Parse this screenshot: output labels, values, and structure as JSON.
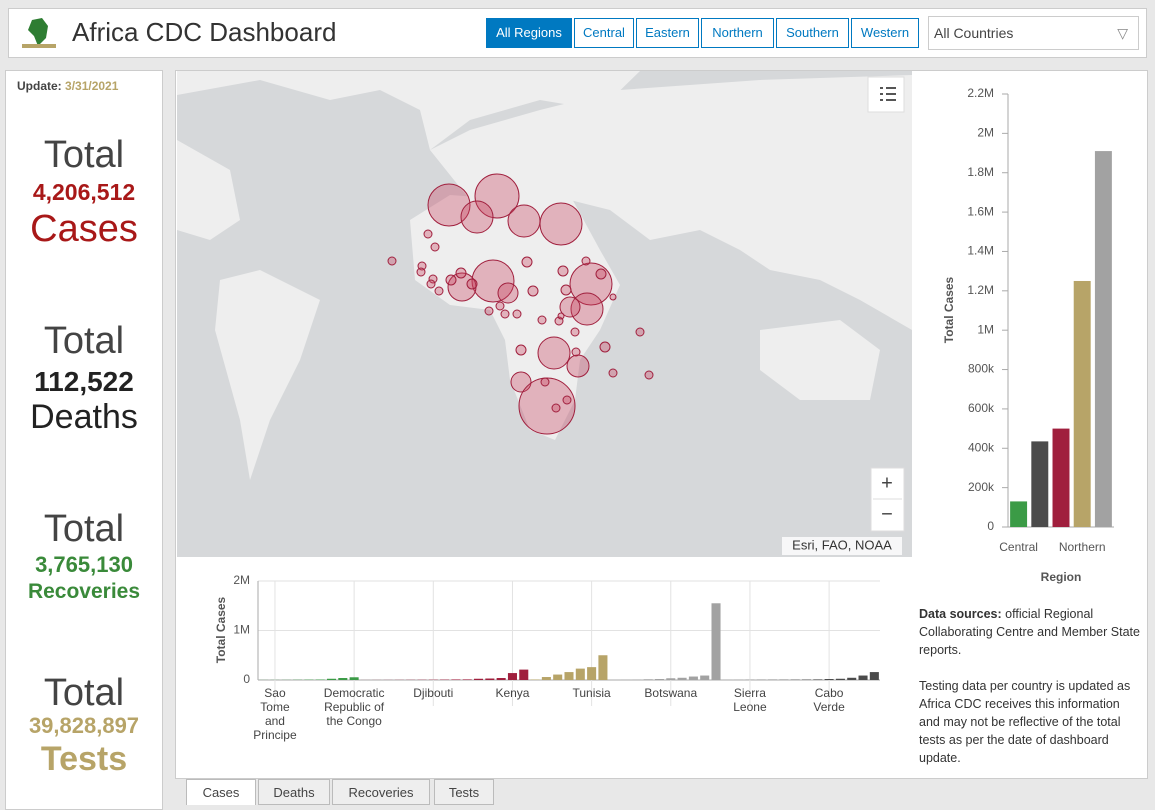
{
  "header": {
    "title": "Africa CDC Dashboard",
    "region_buttons": [
      "All Regions",
      "Central",
      "Eastern",
      "Northern",
      "Southern",
      "Western"
    ],
    "country_select": "All Countries"
  },
  "summary": {
    "update_label": "Update:",
    "update_date": "3/31/2021",
    "items": [
      {
        "total": "Total",
        "number": "4,206,512",
        "label": "Cases"
      },
      {
        "total": "Total",
        "number": "112,522",
        "label": "Deaths"
      },
      {
        "total": "Total",
        "number": "3,765,130",
        "label": "Recoveries"
      },
      {
        "total": "Total",
        "number": "39,828,897",
        "label": "Tests"
      }
    ]
  },
  "map": {
    "attribution": "Esri, FAO, NOAA",
    "zoom_in": "+",
    "zoom_out": "−"
  },
  "chart_data": [
    {
      "type": "bar",
      "y_label": "Total Cases",
      "x_label": "Region",
      "categories": [
        "Central",
        null,
        null,
        "Northern",
        null
      ],
      "values": [
        130000,
        435000,
        500000,
        1250000,
        1910000
      ],
      "colors": [
        "#3b9b46",
        "#4b4b4b",
        "#a01f3d",
        "#b7a468",
        "#a2a2a2"
      ],
      "ylim": [
        0,
        2200000
      ],
      "yticks": [
        0,
        {
          "value": 200000,
          "label": "200k"
        },
        {
          "value": 400000,
          "label": "400k"
        },
        {
          "value": 600000,
          "label": "600k"
        },
        {
          "value": 800000,
          "label": "800k"
        },
        {
          "value": 1000000,
          "label": "1M"
        },
        {
          "value": 1200000,
          "label": "1.2M"
        },
        {
          "value": 1400000,
          "label": "1.4M"
        },
        {
          "value": 1600000,
          "label": "1.6M"
        },
        {
          "value": 1800000,
          "label": "1.8M"
        },
        {
          "value": 2000000,
          "label": "2M"
        },
        {
          "value": 2200000,
          "label": "2.2M"
        }
      ]
    },
    {
      "type": "bar",
      "y_label": "Total Cases",
      "categories": [
        null,
        "Sao Tome and Principe",
        null,
        null,
        null,
        null,
        null,
        null,
        "Democratic Republic of the Congo",
        null,
        null,
        null,
        null,
        null,
        null,
        "Djibouti",
        null,
        null,
        null,
        null,
        null,
        null,
        "Kenya",
        null,
        null,
        null,
        null,
        null,
        null,
        "Tunisia",
        null,
        null,
        null,
        null,
        null,
        null,
        "Botswana",
        null,
        null,
        null,
        null,
        null,
        null,
        "Sierra Leone",
        null,
        null,
        null,
        null,
        null,
        null,
        "Cabo Verde",
        null,
        null,
        null,
        null
      ],
      "values": [
        2000,
        2500,
        3000,
        5000,
        7000,
        9000,
        25000,
        40000,
        55000,
        1000,
        1500,
        2000,
        3000,
        4000,
        5000,
        6000,
        8000,
        11000,
        12000,
        25000,
        30000,
        40000,
        140000,
        210000,
        10000,
        60000,
        110000,
        160000,
        230000,
        260000,
        500000,
        3000,
        7000,
        10000,
        15000,
        20000,
        35000,
        45000,
        70000,
        90000,
        1550000,
        500,
        1000,
        2000,
        3000,
        4000,
        5000,
        7000,
        9000,
        12000,
        20000,
        25000,
        45000,
        90000,
        160000
      ],
      "colors": [
        "#3b9b46",
        "#3b9b46",
        "#3b9b46",
        "#3b9b46",
        "#3b9b46",
        "#3b9b46",
        "#3b9b46",
        "#3b9b46",
        "#3b9b46",
        "#a01f3d",
        "#a01f3d",
        "#a01f3d",
        "#a01f3d",
        "#a01f3d",
        "#a01f3d",
        "#a01f3d",
        "#a01f3d",
        "#a01f3d",
        "#a01f3d",
        "#a01f3d",
        "#a01f3d",
        "#a01f3d",
        "#a01f3d",
        "#a01f3d",
        "#b7a468",
        "#b7a468",
        "#b7a468",
        "#b7a468",
        "#b7a468",
        "#b7a468",
        "#b7a468",
        "#a2a2a2",
        "#a2a2a2",
        "#a2a2a2",
        "#a2a2a2",
        "#a2a2a2",
        "#a2a2a2",
        "#a2a2a2",
        "#a2a2a2",
        "#a2a2a2",
        "#a2a2a2",
        "#4b4b4b",
        "#4b4b4b",
        "#4b4b4b",
        "#4b4b4b",
        "#4b4b4b",
        "#4b4b4b",
        "#4b4b4b",
        "#4b4b4b",
        "#4b4b4b",
        "#4b4b4b",
        "#4b4b4b",
        "#4b4b4b",
        "#4b4b4b",
        "#4b4b4b"
      ],
      "ylim": [
        0,
        2000000
      ],
      "yticks": [
        0,
        {
          "value": 1000000,
          "label": "1M"
        },
        {
          "value": 2000000,
          "label": "2M"
        }
      ],
      "grid": true
    }
  ],
  "sources": {
    "heading": "Data sources:",
    "text": "official Regional Collaborating Centre and Member State reports.",
    "note": "Testing data per country is updated as Africa CDC receives this information and may not be reflective of the total tests as per the date of dashboard update."
  },
  "tabs": [
    "Cases",
    "Deaths",
    "Recoveries",
    "Tests"
  ]
}
